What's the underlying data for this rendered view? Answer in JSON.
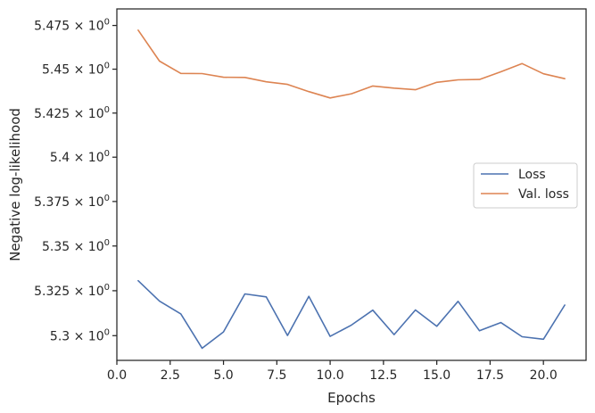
{
  "chart_data": {
    "type": "line",
    "title": "",
    "xlabel": "Epochs",
    "ylabel": "Negative log-likelihood",
    "xlim": [
      0.0,
      22.0
    ],
    "ylim": [
      5.2863,
      5.4845
    ],
    "yscale": "log",
    "grid": false,
    "legend_position": "center-right",
    "x_ticks": [
      0.0,
      2.5,
      5.0,
      7.5,
      10.0,
      12.5,
      15.0,
      17.5,
      20.0
    ],
    "x_tick_labels": [
      "0.0",
      "2.5",
      "5.0",
      "7.5",
      "10.0",
      "12.5",
      "15.0",
      "17.5",
      "20.0"
    ],
    "y_ticks": [
      5.3,
      5.325,
      5.35,
      5.375,
      5.4,
      5.425,
      5.45,
      5.475
    ],
    "y_tick_labels": [
      {
        "mantissa": "5.3",
        "sup": "0"
      },
      {
        "mantissa": "5.325",
        "sup": "0"
      },
      {
        "mantissa": "5.35",
        "sup": "0"
      },
      {
        "mantissa": "5.375",
        "sup": "0"
      },
      {
        "mantissa": "5.4",
        "sup": "0"
      },
      {
        "mantissa": "5.425",
        "sup": "0"
      },
      {
        "mantissa": "5.45",
        "sup": "0"
      },
      {
        "mantissa": "5.475",
        "sup": "0"
      }
    ],
    "x": [
      1,
      2,
      3,
      4,
      5,
      6,
      7,
      8,
      9,
      10,
      11,
      12,
      13,
      14,
      15,
      16,
      17,
      18,
      19,
      20,
      21
    ],
    "series": [
      {
        "name": "Loss",
        "color": "#4c72b0",
        "values": [
          5.3306,
          5.3192,
          5.3121,
          5.293,
          5.3021,
          5.3232,
          5.3216,
          5.3001,
          5.3219,
          5.2996,
          5.3059,
          5.3142,
          5.3006,
          5.3143,
          5.3052,
          5.3191,
          5.3027,
          5.3073,
          5.2994,
          5.298,
          5.317
        ]
      },
      {
        "name": "Val. loss",
        "color": "#dd8452",
        "values": [
          5.4723,
          5.4546,
          5.4476,
          5.4475,
          5.4454,
          5.4453,
          5.4428,
          5.4413,
          5.4372,
          5.4336,
          5.436,
          5.4404,
          5.4392,
          5.4383,
          5.4425,
          5.4439,
          5.4441,
          5.4485,
          5.4532,
          5.4474,
          5.4446
        ]
      }
    ]
  }
}
